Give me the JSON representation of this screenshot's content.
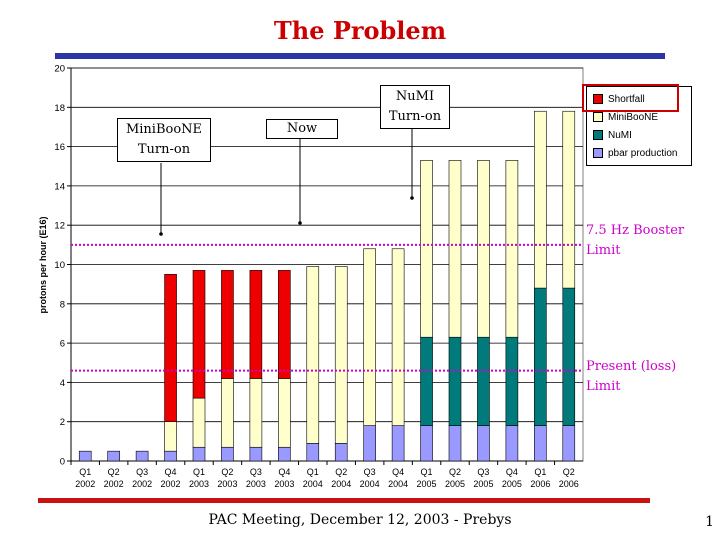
{
  "slide": {
    "title": "The Problem",
    "footer": "PAC Meeting, December 12, 2003 - Prebys",
    "page_number": "1"
  },
  "callouts": {
    "miniboone": [
      "MiniBooNE",
      "Turn-on"
    ],
    "now": "Now",
    "numi": [
      "NuMI",
      "Turn-on"
    ]
  },
  "limits": {
    "booster": {
      "label_line1": "7.5 Hz Booster",
      "label_line2": "Limit",
      "value": 11
    },
    "present": {
      "label_line1": "Present (loss)",
      "label_line2": "Limit",
      "value": 4.6
    }
  },
  "colors": {
    "shortfall": "#ee0000",
    "miniboone": "#ffffcc",
    "numi": "#007a7a",
    "pbar": "#9999ff",
    "limit_line": "#cc00cc"
  },
  "chart_data": {
    "type": "bar",
    "stacked": true,
    "ylabel": "protons per hour (E16)",
    "ylim": [
      0,
      20
    ],
    "yticks": [
      0,
      2,
      4,
      6,
      8,
      10,
      12,
      14,
      16,
      18,
      20
    ],
    "grid": true,
    "legend_position": "top-right",
    "categories": [
      [
        "Q1",
        "2002"
      ],
      [
        "Q2",
        "2002"
      ],
      [
        "Q3",
        "2002"
      ],
      [
        "Q4",
        "2002"
      ],
      [
        "Q1",
        "2003"
      ],
      [
        "Q2",
        "2003"
      ],
      [
        "Q3",
        "2003"
      ],
      [
        "Q4",
        "2003"
      ],
      [
        "Q1",
        "2004"
      ],
      [
        "Q2",
        "2004"
      ],
      [
        "Q3",
        "2004"
      ],
      [
        "Q4",
        "2004"
      ],
      [
        "Q1",
        "2005"
      ],
      [
        "Q2",
        "2005"
      ],
      [
        "Q3",
        "2005"
      ],
      [
        "Q4",
        "2005"
      ],
      [
        "Q1",
        "2006"
      ],
      [
        "Q2",
        "2006"
      ]
    ],
    "series": [
      {
        "name": "pbar production",
        "color_key": "pbar",
        "values": [
          0.5,
          0.5,
          0.5,
          0.5,
          0.7,
          0.7,
          0.7,
          0.7,
          0.9,
          0.9,
          1.8,
          1.8,
          1.8,
          1.8,
          1.8,
          1.8,
          1.8,
          1.8
        ]
      },
      {
        "name": "NuMI",
        "color_key": "numi",
        "values": [
          0,
          0,
          0,
          0,
          0,
          0,
          0,
          0,
          0,
          0,
          0,
          0,
          4.5,
          4.5,
          4.5,
          4.5,
          7.0,
          7.0
        ]
      },
      {
        "name": "MiniBooNE",
        "color_key": "miniboone",
        "values": [
          0,
          0,
          0,
          1.5,
          2.5,
          3.5,
          3.5,
          3.5,
          9.0,
          9.0,
          9.0,
          9.0,
          9.0,
          9.0,
          9.0,
          9.0,
          9.0,
          9.0
        ]
      },
      {
        "name": "Shortfall",
        "color_key": "shortfall",
        "values": [
          0,
          0,
          0,
          7.5,
          6.5,
          5.5,
          5.5,
          5.5,
          0,
          0,
          0,
          0,
          0,
          0,
          0,
          0,
          0,
          0
        ]
      }
    ],
    "legend_order": [
      "Shortfall",
      "MiniBooNE",
      "NuMI",
      "pbar production"
    ]
  }
}
